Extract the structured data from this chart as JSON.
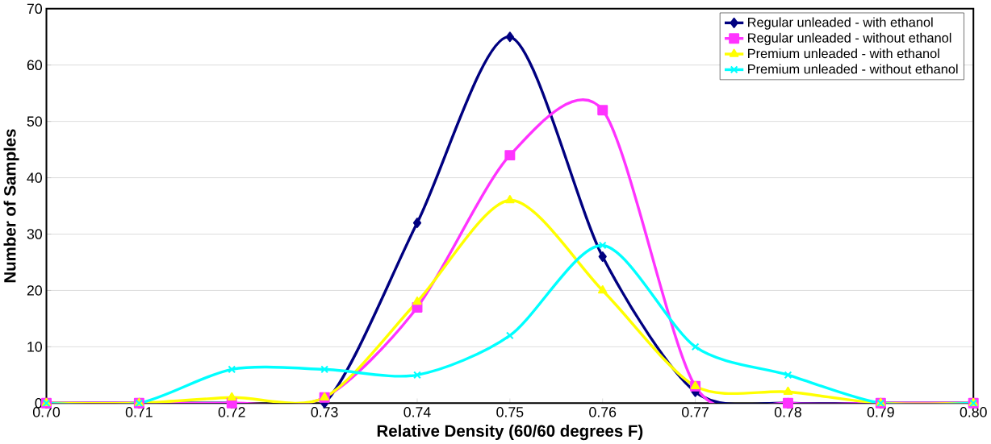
{
  "chart_data": {
    "type": "line",
    "xlabel": "Relative Density (60/60 degrees F)",
    "ylabel": "Number of Samples",
    "x": [
      0.7,
      0.71,
      0.72,
      0.73,
      0.74,
      0.75,
      0.76,
      0.77,
      0.78,
      0.79,
      0.8
    ],
    "series": [
      {
        "name": "Regular unleaded  - with ethanol",
        "color": "#000080",
        "marker": "diamond",
        "values": [
          0,
          0,
          0,
          0,
          32,
          65,
          26,
          2,
          0,
          0,
          0
        ]
      },
      {
        "name": "Regular unleaded  - without ethanol",
        "color": "#ff33ff",
        "marker": "square",
        "values": [
          0,
          0,
          0,
          1,
          17,
          44,
          52,
          3,
          0,
          0,
          0
        ]
      },
      {
        "name": "Premium unleaded  - with ethanol",
        "color": "#ffff00",
        "marker": "triangle",
        "values": [
          0,
          0,
          1,
          1,
          18,
          36,
          20,
          3,
          2,
          0,
          0
        ]
      },
      {
        "name": "Premium unleaded  - without ethanol",
        "color": "#00ffff",
        "marker": "cross",
        "values": [
          0,
          0,
          6,
          6,
          5,
          12,
          28,
          10,
          5,
          0,
          0
        ]
      }
    ],
    "xlim": [
      0.7,
      0.8
    ],
    "ylim": [
      0,
      70
    ],
    "xticks": [
      {
        "value": 0.7,
        "label": "0.70"
      },
      {
        "value": 0.71,
        "label": "0.71"
      },
      {
        "value": 0.72,
        "label": "0.72"
      },
      {
        "value": 0.73,
        "label": "0.73"
      },
      {
        "value": 0.74,
        "label": "0.74"
      },
      {
        "value": 0.75,
        "label": "0.75"
      },
      {
        "value": 0.76,
        "label": "0.76"
      },
      {
        "value": 0.77,
        "label": "0.77"
      },
      {
        "value": 0.78,
        "label": "0.78"
      },
      {
        "value": 0.79,
        "label": "0.79"
      },
      {
        "value": 0.8,
        "label": "0.80"
      }
    ],
    "yticks": [
      0,
      10,
      20,
      30,
      40,
      50,
      60,
      70
    ],
    "grid": "y",
    "legend": "top right",
    "line_style": "solid"
  }
}
